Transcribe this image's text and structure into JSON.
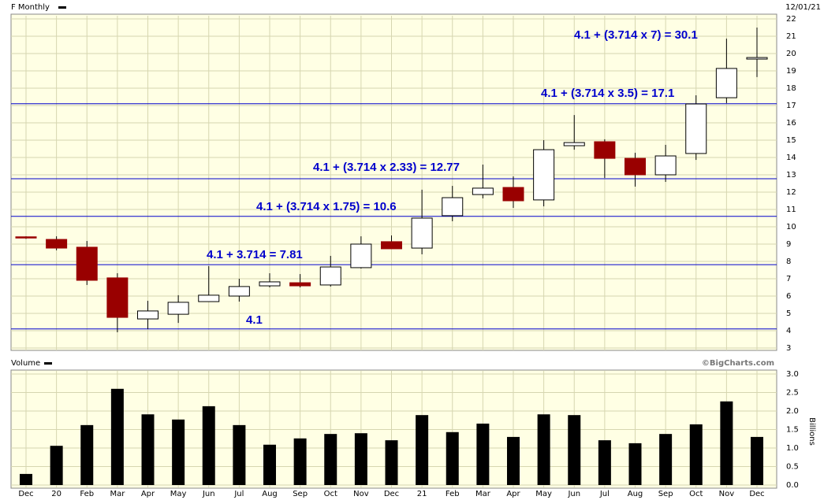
{
  "chart_data": [
    {
      "type": "candlestick",
      "title": "F Monthly",
      "date_label": "12/01/21",
      "open": [
        9.42,
        9.27,
        8.82,
        7.05,
        4.68,
        4.95,
        5.68,
        6.0,
        6.59,
        6.77,
        6.64,
        7.64,
        9.14,
        8.77,
        10.64,
        11.86,
        12.27,
        11.55,
        14.68,
        14.91,
        13.95,
        13.0,
        14.23,
        17.45,
        19.68
      ],
      "high": [
        9.45,
        9.45,
        9.18,
        7.32,
        5.73,
        6.05,
        7.73,
        7.0,
        7.32,
        7.27,
        8.32,
        9.45,
        9.5,
        12.14,
        12.36,
        13.59,
        12.91,
        15.0,
        16.45,
        15.05,
        14.27,
        14.73,
        17.59,
        20.86,
        21.5
      ],
      "low": [
        9.3,
        8.64,
        6.64,
        3.91,
        4.09,
        4.45,
        5.68,
        5.68,
        6.5,
        6.5,
        6.55,
        7.59,
        8.73,
        8.41,
        10.32,
        11.64,
        11.09,
        11.18,
        14.45,
        12.82,
        12.32,
        12.59,
        13.86,
        17.14,
        18.64
      ],
      "close": [
        9.35,
        8.77,
        6.91,
        4.77,
        5.14,
        5.64,
        6.05,
        6.55,
        6.82,
        6.59,
        7.68,
        9.0,
        8.73,
        10.5,
        11.68,
        12.23,
        11.5,
        14.45,
        14.86,
        13.95,
        13.0,
        14.09,
        17.09,
        19.14,
        19.77
      ],
      "up_color": "#ffffff",
      "down_color": "#990000",
      "ylim": [
        3,
        22
      ],
      "yticks": [
        3,
        4,
        5,
        6,
        7,
        8,
        9,
        10,
        11,
        12,
        13,
        14,
        15,
        16,
        17,
        18,
        19,
        20,
        21,
        22
      ],
      "grid": true,
      "levels": [
        4.1,
        7.81,
        10.6,
        12.77,
        17.1
      ],
      "level_color": "#0000cc",
      "annotations": [
        "4.1 + (3.714 x 7) = 30.1",
        "4.1 + (3.714 x 3.5) = 17.1",
        "4.1 + (3.714 x 2.33) = 12.77",
        "4.1 + (3.714 x 1.75) = 10.6",
        "4.1 + 3.714 = 7.81",
        "4.1"
      ]
    },
    {
      "type": "bar",
      "title": "Volume",
      "source": "©BigCharts.com",
      "ylabel": "Billions",
      "categories": [
        "Dec",
        "20",
        "Feb",
        "Mar",
        "Apr",
        "May",
        "Jun",
        "Jul",
        "Aug",
        "Sep",
        "Oct",
        "Nov",
        "Dec",
        "21",
        "Feb",
        "Mar",
        "Apr",
        "May",
        "Jun",
        "Jul",
        "Aug",
        "Sep",
        "Oct",
        "Nov",
        "Dec"
      ],
      "values": [
        0.3,
        1.06,
        1.62,
        2.6,
        1.91,
        1.77,
        2.13,
        1.62,
        1.09,
        1.26,
        1.38,
        1.4,
        1.21,
        1.89,
        1.43,
        1.66,
        1.3,
        1.91,
        1.89,
        1.21,
        1.13,
        1.38,
        1.64,
        2.26,
        1.3
      ],
      "color": "#000000",
      "ylim": [
        0,
        3
      ],
      "yticks": [
        {
          "value": 0,
          "label": "0.0"
        },
        {
          "value": 0.5,
          "label": "0.5"
        },
        {
          "value": 1,
          "label": "1.0"
        },
        {
          "value": 1.5,
          "label": "1.5"
        },
        {
          "value": 2,
          "label": "2.0"
        },
        {
          "value": 2.5,
          "label": "2.5"
        },
        {
          "value": 3,
          "label": "3.0"
        }
      ],
      "grid": true
    }
  ]
}
